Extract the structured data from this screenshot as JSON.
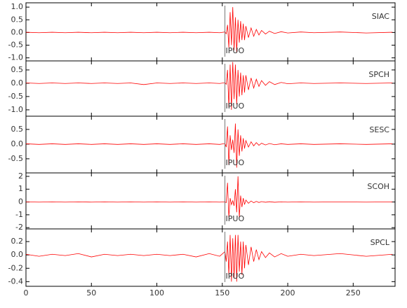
{
  "chart_data": [
    {
      "type": "line",
      "station": "SIAC",
      "pick": {
        "label": "IPUO",
        "x": 152
      },
      "xlim": [
        0,
        282
      ],
      "ylim": [
        -1.12,
        1.17
      ],
      "yticks": [
        {
          "value": 1,
          "label": "1.0"
        },
        0.5,
        {
          "value": 0,
          "label": "0.0"
        },
        -0.5,
        {
          "value": -1,
          "label": "-1.0"
        }
      ],
      "x": [
        0,
        10,
        20,
        30,
        40,
        50,
        60,
        70,
        80,
        90,
        100,
        110,
        120,
        130,
        140,
        148,
        152,
        153,
        154,
        155,
        156,
        157,
        158,
        159,
        160,
        161,
        162,
        163,
        164,
        165,
        166,
        167,
        168,
        170,
        172,
        174,
        176,
        178,
        180,
        183,
        186,
        190,
        195,
        200,
        210,
        220,
        240,
        260,
        280
      ],
      "color": "#ff0000",
      "values": [
        0.01,
        -0.01,
        0.01,
        -0.01,
        0.01,
        -0.01,
        0.01,
        -0.01,
        0.01,
        -0.01,
        0.01,
        -0.01,
        0.01,
        -0.01,
        0.01,
        -0.01,
        0.02,
        -0.05,
        0.3,
        -0.6,
        0.8,
        -0.5,
        1.0,
        -0.7,
        0.6,
        -0.8,
        0.5,
        -0.4,
        0.45,
        -0.3,
        0.35,
        -0.3,
        0.25,
        -0.2,
        0.18,
        -0.15,
        0.12,
        -0.1,
        0.08,
        -0.06,
        0.05,
        -0.04,
        0.03,
        -0.02,
        0.02,
        -0.01,
        0.02,
        -0.02,
        0.01
      ]
    },
    {
      "type": "line",
      "station": "SPCH",
      "pick": {
        "label": "IPUO",
        "x": 152
      },
      "xlim": [
        0,
        282
      ],
      "ylim": [
        -1.24,
        0.84
      ],
      "yticks": [
        0.5,
        {
          "value": 0,
          "label": "0.0"
        },
        -0.5,
        {
          "value": -1,
          "label": "-1.0"
        }
      ],
      "x": [
        0,
        10,
        20,
        30,
        40,
        50,
        60,
        70,
        80,
        90,
        100,
        110,
        120,
        130,
        140,
        148,
        152,
        153,
        154,
        155,
        156,
        157,
        158,
        159,
        160,
        161,
        162,
        163,
        164,
        165,
        166,
        167,
        168,
        170,
        172,
        174,
        176,
        178,
        180,
        183,
        186,
        190,
        195,
        200,
        210,
        220,
        240,
        260,
        280
      ],
      "color": "#ff0000",
      "values": [
        0.01,
        -0.01,
        0.01,
        -0.01,
        0.01,
        -0.01,
        0.01,
        -0.01,
        0.01,
        -0.05,
        0.01,
        -0.01,
        0.01,
        -0.01,
        0.01,
        -0.01,
        0.02,
        -0.04,
        0.5,
        -0.9,
        0.7,
        -1.0,
        0.8,
        -0.6,
        0.7,
        -0.8,
        0.5,
        -0.5,
        0.4,
        -0.45,
        0.3,
        -0.35,
        0.3,
        -0.25,
        0.2,
        -0.18,
        0.15,
        -0.12,
        0.1,
        -0.08,
        0.06,
        -0.05,
        0.03,
        -0.02,
        0.01,
        -0.01,
        0.01,
        -0.01,
        0.01
      ]
    },
    {
      "type": "line",
      "station": "SESC",
      "pick": {
        "label": "IPUO",
        "x": 152
      },
      "xlim": [
        0,
        282
      ],
      "ylim": [
        -0.98,
        0.95
      ],
      "yticks": [
        0.5,
        {
          "value": 0,
          "label": "0.0"
        },
        -0.5
      ],
      "x": [
        0,
        10,
        20,
        30,
        40,
        50,
        60,
        70,
        80,
        90,
        100,
        110,
        120,
        130,
        140,
        148,
        152,
        153,
        154,
        155,
        156,
        157,
        158,
        159,
        160,
        161,
        162,
        163,
        164,
        165,
        166,
        167,
        168,
        170,
        172,
        174,
        176,
        178,
        180,
        183,
        186,
        190,
        195,
        200,
        210,
        220,
        240,
        260,
        280
      ],
      "color": "#ff0000",
      "values": [
        0.01,
        -0.01,
        0.01,
        -0.01,
        0.01,
        -0.01,
        0.01,
        -0.01,
        0.01,
        -0.01,
        0.01,
        -0.01,
        0.01,
        -0.01,
        0.01,
        -0.01,
        0.02,
        -0.1,
        0.6,
        -0.7,
        0.3,
        -0.2,
        0.15,
        -0.3,
        0.7,
        -0.8,
        0.5,
        -0.4,
        0.3,
        -0.25,
        0.2,
        -0.15,
        0.12,
        -0.1,
        0.08,
        -0.06,
        0.05,
        -0.04,
        0.03,
        -0.03,
        0.02,
        -0.02,
        0.01,
        -0.01,
        0.01,
        -0.01,
        0.01,
        -0.01,
        0.01
      ]
    },
    {
      "type": "line",
      "station": "SCOH",
      "pick": {
        "label": "IPUO",
        "x": 152
      },
      "xlim": [
        0,
        282
      ],
      "ylim": [
        -2.1,
        2.27
      ],
      "yticks": [
        2,
        1,
        0,
        -1,
        -2
      ],
      "x": [
        0,
        10,
        20,
        30,
        40,
        50,
        60,
        70,
        80,
        90,
        100,
        110,
        120,
        130,
        140,
        148,
        152,
        153,
        154,
        155,
        156,
        157,
        158,
        159,
        160,
        161,
        162,
        163,
        164,
        165,
        166,
        167,
        168,
        170,
        172,
        174,
        176,
        178,
        180,
        183,
        186,
        190,
        195,
        200,
        210,
        220,
        240,
        260,
        280
      ],
      "color": "#ff0000",
      "values": [
        0.01,
        -0.01,
        0.01,
        -0.01,
        0.01,
        -0.01,
        0.01,
        -0.01,
        0.01,
        -0.01,
        0.01,
        -0.01,
        0.01,
        -0.01,
        0.01,
        -0.01,
        0.01,
        -0.05,
        1.5,
        -1.2,
        0.3,
        -0.2,
        0.1,
        -0.3,
        1.0,
        -0.8,
        2.0,
        -1.2,
        0.5,
        -0.4,
        0.3,
        -0.2,
        0.15,
        -0.1,
        0.08,
        -0.06,
        0.05,
        -0.04,
        0.03,
        -0.02,
        0.02,
        -0.02,
        0.01,
        -0.01,
        0.01,
        -0.01,
        0.01,
        -0.01,
        0.01
      ]
    },
    {
      "type": "line",
      "station": "SPCL",
      "pick": {
        "label": "IPUO",
        "x": 152
      },
      "xlim": [
        0,
        282
      ],
      "ylim": [
        -0.47,
        0.39
      ],
      "yticks": [
        0.2,
        {
          "value": 0,
          "label": "0.0"
        },
        -0.2,
        -0.4
      ],
      "xticks": [
        0,
        50,
        100,
        150,
        200,
        250
      ],
      "x": [
        0,
        10,
        20,
        30,
        40,
        50,
        60,
        70,
        80,
        90,
        100,
        110,
        120,
        130,
        140,
        148,
        152,
        153,
        154,
        155,
        156,
        157,
        158,
        159,
        160,
        161,
        162,
        163,
        164,
        165,
        166,
        167,
        168,
        170,
        172,
        174,
        176,
        178,
        180,
        183,
        186,
        190,
        195,
        200,
        210,
        220,
        240,
        260,
        280
      ],
      "color": "#ff0000",
      "values": [
        0.01,
        -0.02,
        0.01,
        -0.01,
        0.02,
        -0.03,
        0.01,
        -0.01,
        0.01,
        -0.01,
        0.01,
        -0.01,
        0.01,
        -0.03,
        0.02,
        -0.02,
        0.05,
        -0.1,
        0.2,
        -0.3,
        0.3,
        -0.4,
        0.25,
        -0.35,
        0.3,
        -0.4,
        0.3,
        -0.25,
        0.2,
        -0.3,
        0.2,
        -0.2,
        0.15,
        -0.15,
        0.12,
        -0.1,
        0.08,
        -0.07,
        0.05,
        -0.04,
        0.03,
        -0.03,
        0.02,
        -0.02,
        0.01,
        -0.01,
        0.02,
        -0.02,
        0.01
      ]
    }
  ]
}
